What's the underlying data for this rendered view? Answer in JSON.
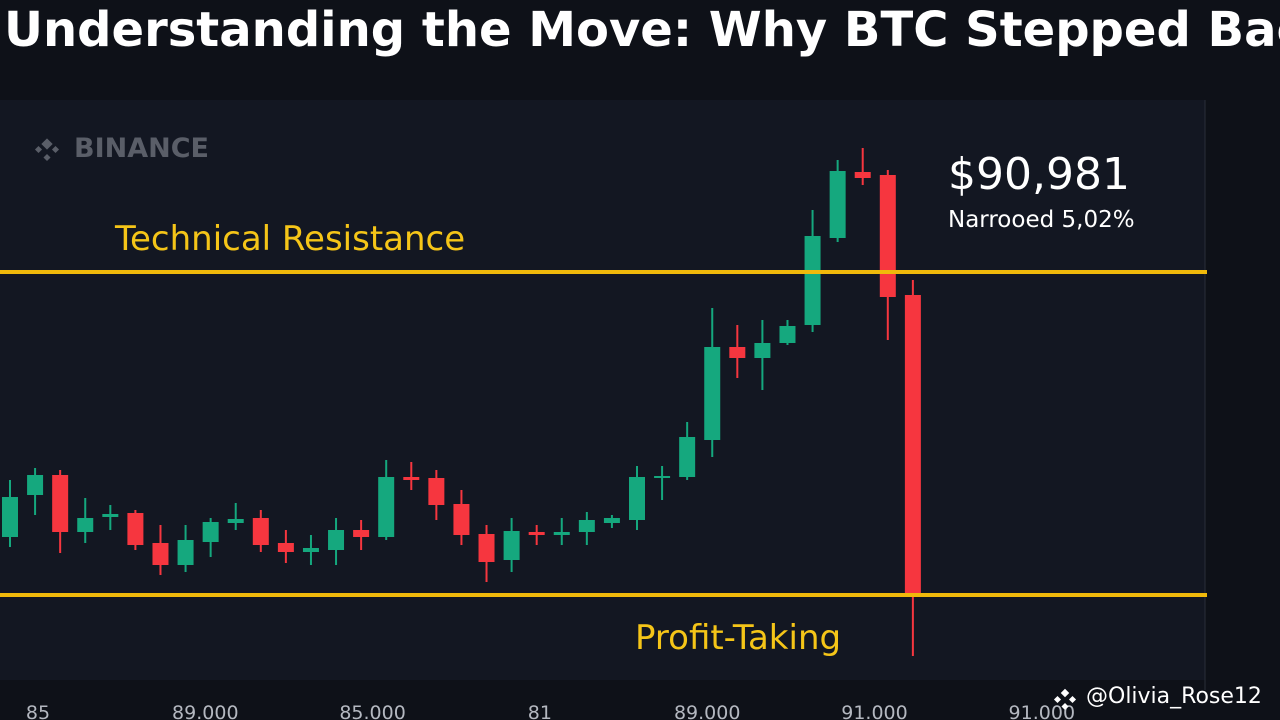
{
  "chart_data": {
    "type": "candlestick",
    "title": "Understanding the Move: Why BTC Stepped Back",
    "watermark": "BINANCE",
    "price_label": "$90,981",
    "price_note": "Narrooed 5,02%",
    "credit": "@Olivia_Rose12",
    "x_labels": [
      "85",
      "89.000",
      "85.000",
      "81",
      "89.000",
      "91.000",
      "91.000"
    ],
    "ylim": [
      80000,
      92000
    ],
    "up_color": "#15a87e",
    "down_color": "#f6363f",
    "open": [
      83260,
      84100,
      84500,
      83360,
      83660,
      83740,
      83140,
      82700,
      83160,
      83540,
      83640,
      83140,
      82960,
      83000,
      83400,
      83260,
      84460,
      84440,
      83920,
      83320,
      82800,
      83360,
      83300,
      83360,
      83540,
      83600,
      84440,
      84460,
      85200,
      87060,
      86840,
      87140,
      87500,
      89240,
      90560,
      90500,
      88100
    ],
    "high": [
      84400,
      84640,
      84600,
      84040,
      83900,
      83800,
      83500,
      83500,
      83640,
      83940,
      83800,
      83400,
      83300,
      83640,
      83600,
      84800,
      84760,
      84600,
      84200,
      83500,
      83640,
      83500,
      83640,
      83760,
      83700,
      84680,
      84680,
      85560,
      87840,
      87500,
      87600,
      87600,
      89800,
      90800,
      91040,
      90600,
      88400
    ],
    "low": [
      83060,
      83700,
      82940,
      83140,
      83400,
      83000,
      82500,
      82560,
      82860,
      83400,
      82960,
      82740,
      82700,
      82700,
      83000,
      83200,
      84200,
      83600,
      83100,
      82360,
      82560,
      83100,
      83100,
      83100,
      83440,
      83400,
      84000,
      84400,
      84860,
      86440,
      86200,
      87100,
      87360,
      89160,
      90300,
      87200,
      80880
    ],
    "close": [
      84060,
      84500,
      83360,
      83640,
      83720,
      83100,
      82700,
      83200,
      83560,
      83620,
      83100,
      82960,
      83040,
      83400,
      83260,
      84460,
      84400,
      83900,
      83300,
      82760,
      83380,
      83300,
      83360,
      83600,
      83640,
      84460,
      84480,
      85260,
      87060,
      86840,
      87140,
      87480,
      89280,
      90580,
      90440,
      88060,
      82120
    ],
    "levels": [
      {
        "label": "Technical Resistance",
        "value": 88560,
        "color": "#f0b90b"
      },
      {
        "label": "Profit-Taking",
        "value": 82100,
        "color": "#f0b90b"
      }
    ]
  }
}
